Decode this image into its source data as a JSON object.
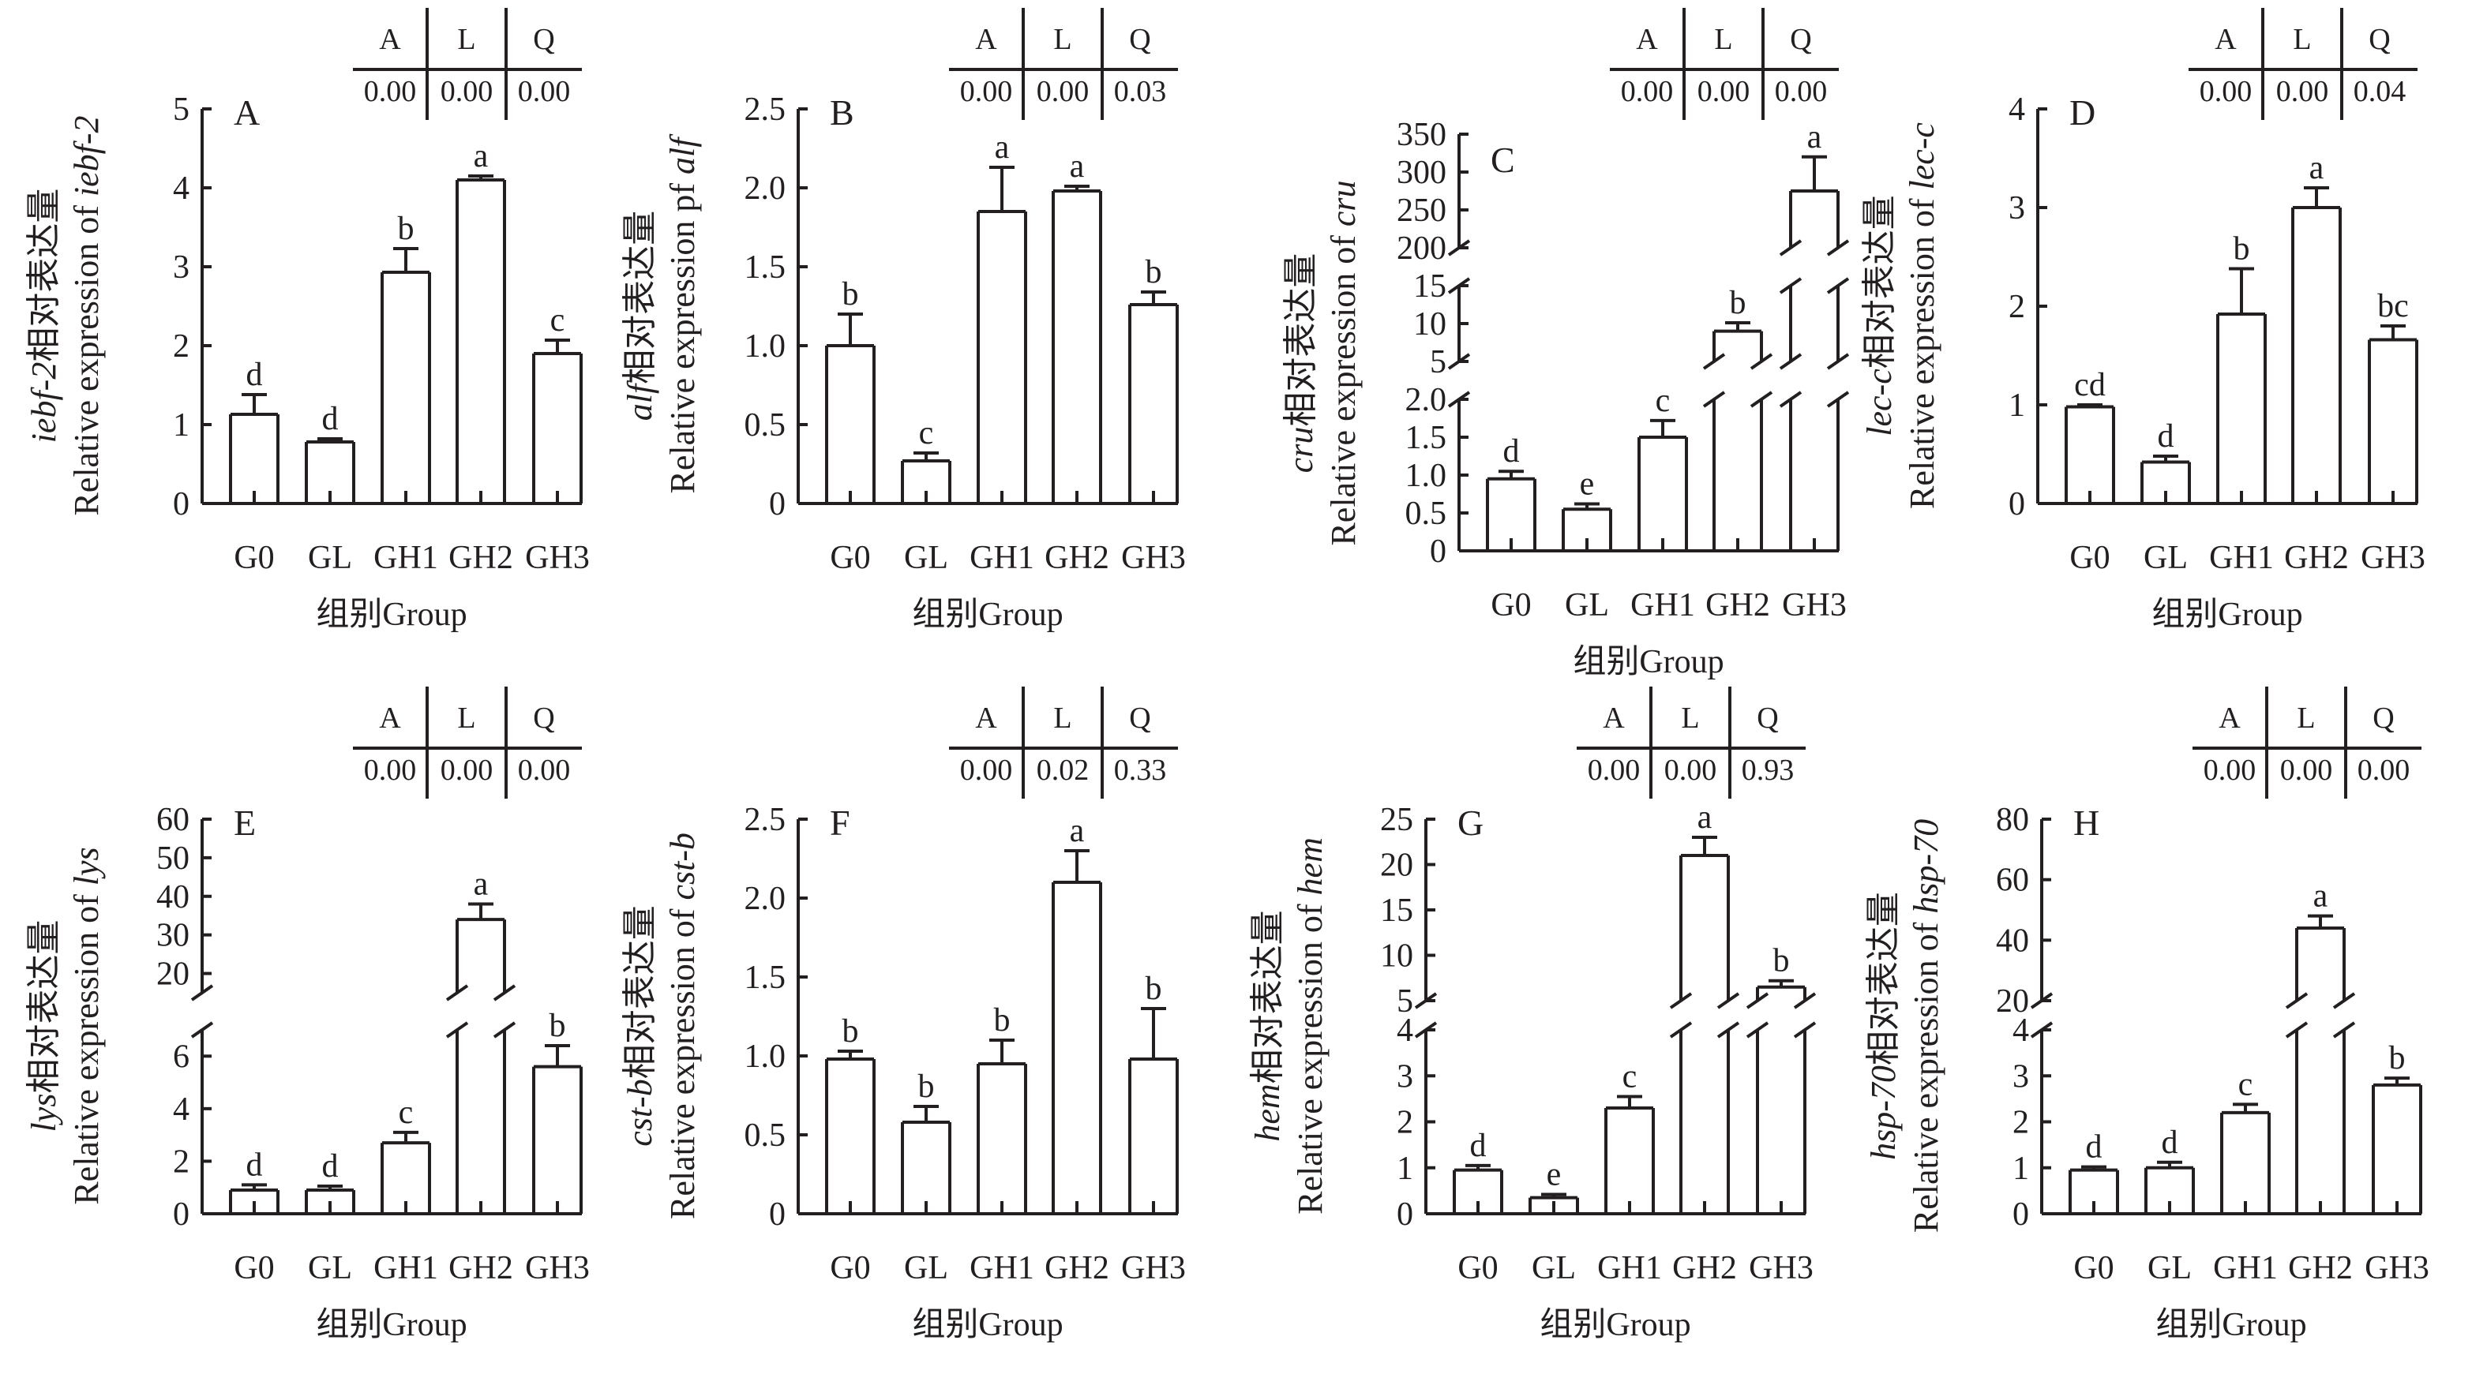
{
  "shared": {
    "xlabel": "组别Group",
    "ylabel_cn_suffix": "相对表达量",
    "table_headers": [
      "A",
      "L",
      "Q"
    ]
  },
  "colors": {
    "ink": "#231f20",
    "bar_fill": "#ffffff"
  },
  "chart_data": [
    {
      "type": "bar",
      "panel_label": "A",
      "ylabel_gene": "iebf-2",
      "ylabel_en_prefix": "Relative expression of ",
      "xlabel": "组别Group",
      "categories": [
        "G0",
        "GL",
        "GH1",
        "GH2",
        "GH3"
      ],
      "values": [
        1.13,
        0.78,
        2.93,
        4.1,
        1.9
      ],
      "error_upper": [
        1.38,
        0.82,
        3.23,
        4.15,
        2.07
      ],
      "letters": [
        "d",
        "d",
        "b",
        "a",
        "c"
      ],
      "table_values": [
        "0.00",
        "0.00",
        "0.00"
      ],
      "segments": [
        {
          "range": [
            0,
            5
          ],
          "ticks": [
            "0",
            "1",
            "2",
            "3",
            "4",
            "5"
          ]
        }
      ]
    },
    {
      "type": "bar",
      "panel_label": "B",
      "ylabel_gene": "alf",
      "ylabel_en_prefix": "Relative expression pf ",
      "xlabel": "组别Group",
      "categories": [
        "G0",
        "GL",
        "GH1",
        "GH2",
        "GH3"
      ],
      "values": [
        1.0,
        0.27,
        1.85,
        1.98,
        1.26
      ],
      "error_upper": [
        1.2,
        0.32,
        2.13,
        2.01,
        1.34
      ],
      "letters": [
        "b",
        "c",
        "a",
        "a",
        "b"
      ],
      "table_values": [
        "0.00",
        "0.00",
        "0.03"
      ],
      "segments": [
        {
          "range": [
            0,
            2.5
          ],
          "ticks": [
            "0",
            "0.5",
            "1.0",
            "1.5",
            "2.0",
            "2.5"
          ]
        }
      ]
    },
    {
      "type": "bar",
      "panel_label": "C",
      "ylabel_gene": "cru",
      "ylabel_en_prefix": "Relative expression of ",
      "xlabel": "组别Group",
      "categories": [
        "G0",
        "GL",
        "GH1",
        "GH2",
        "GH3"
      ],
      "values": [
        0.95,
        0.55,
        1.5,
        9,
        275
      ],
      "error_upper": [
        1.05,
        0.62,
        1.72,
        10.1,
        320
      ],
      "letters": [
        "d",
        "e",
        "c",
        "b",
        "a"
      ],
      "table_values": [
        "0.00",
        "0.00",
        "0.00"
      ],
      "segments": [
        {
          "range": [
            0,
            2
          ],
          "ticks": [
            "0",
            "0.5",
            "1.0",
            "1.5",
            "2.0"
          ]
        },
        {
          "range": [
            5,
            15
          ],
          "ticks": [
            "5",
            "10",
            "15"
          ]
        },
        {
          "range": [
            200,
            350
          ],
          "ticks": [
            "200",
            "250",
            "300",
            "350"
          ]
        }
      ]
    },
    {
      "type": "bar",
      "panel_label": "D",
      "ylabel_gene": "lec-c",
      "ylabel_en_prefix": "Relative expression of ",
      "xlabel": "组别Group",
      "categories": [
        "G0",
        "GL",
        "GH1",
        "GH2",
        "GH3"
      ],
      "values": [
        0.98,
        0.42,
        1.92,
        3.0,
        1.66
      ],
      "error_upper": [
        1.0,
        0.48,
        2.38,
        3.2,
        1.8
      ],
      "letters": [
        "cd",
        "d",
        "b",
        "a",
        "bc"
      ],
      "table_values": [
        "0.00",
        "0.00",
        "0.04"
      ],
      "segments": [
        {
          "range": [
            0,
            4
          ],
          "ticks": [
            "0",
            "1",
            "2",
            "3",
            "4"
          ]
        }
      ]
    },
    {
      "type": "bar",
      "panel_label": "E",
      "ylabel_gene": "lys",
      "ylabel_en_prefix": "Relative expression of ",
      "xlabel": "组别Group",
      "categories": [
        "G0",
        "GL",
        "GH1",
        "GH2",
        "GH3"
      ],
      "values": [
        0.9,
        0.9,
        2.7,
        34,
        5.6
      ],
      "error_upper": [
        1.1,
        1.05,
        3.1,
        38,
        6.4
      ],
      "letters": [
        "d",
        "d",
        "c",
        "a",
        "b"
      ],
      "table_values": [
        "0.00",
        "0.00",
        "0.00"
      ],
      "segments": [
        {
          "range": [
            0,
            7
          ],
          "ticks": [
            "0",
            "2",
            "4",
            "6"
          ]
        },
        {
          "range": [
            15,
            60
          ],
          "ticks": [
            "20",
            "30",
            "40",
            "50",
            "60"
          ]
        }
      ]
    },
    {
      "type": "bar",
      "panel_label": "F",
      "ylabel_gene": "cst-b",
      "ylabel_en_prefix": "Relative expression of ",
      "xlabel": "组别Group",
      "categories": [
        "G0",
        "GL",
        "GH1",
        "GH2",
        "GH3"
      ],
      "values": [
        0.98,
        0.58,
        0.95,
        2.1,
        0.98
      ],
      "error_upper": [
        1.03,
        0.68,
        1.1,
        2.3,
        1.3
      ],
      "letters": [
        "b",
        "b",
        "b",
        "a",
        "b"
      ],
      "table_values": [
        "0.00",
        "0.02",
        "0.33"
      ],
      "segments": [
        {
          "range": [
            0,
            2.5
          ],
          "ticks": [
            "0",
            "0.5",
            "1.0",
            "1.5",
            "2.0",
            "2.5"
          ]
        }
      ]
    },
    {
      "type": "bar",
      "panel_label": "G",
      "ylabel_gene": "hem",
      "ylabel_en_prefix": "Relative expression of ",
      "xlabel": "组别Group",
      "categories": [
        "G0",
        "GL",
        "GH1",
        "GH2",
        "GH3"
      ],
      "values": [
        0.95,
        0.35,
        2.3,
        21,
        6.5
      ],
      "error_upper": [
        1.05,
        0.42,
        2.55,
        23,
        7.2
      ],
      "letters": [
        "d",
        "e",
        "c",
        "a",
        "b"
      ],
      "table_values": [
        "0.00",
        "0.00",
        "0.93"
      ],
      "segments": [
        {
          "range": [
            0,
            4
          ],
          "ticks": [
            "0",
            "1",
            "2",
            "3",
            "4"
          ]
        },
        {
          "range": [
            5,
            25
          ],
          "ticks": [
            "5",
            "10",
            "15",
            "20",
            "25"
          ]
        }
      ]
    },
    {
      "type": "bar",
      "panel_label": "H",
      "ylabel_gene": "hsp-70",
      "ylabel_en_prefix": "Relative expression of ",
      "xlabel": "组别Group",
      "categories": [
        "G0",
        "GL",
        "GH1",
        "GH2",
        "GH3"
      ],
      "values": [
        0.95,
        1.0,
        2.2,
        44,
        2.8
      ],
      "error_upper": [
        1.02,
        1.12,
        2.38,
        48,
        2.95
      ],
      "letters": [
        "d",
        "d",
        "c",
        "a",
        "b"
      ],
      "table_values": [
        "0.00",
        "0.00",
        "0.00"
      ],
      "segments": [
        {
          "range": [
            0,
            4
          ],
          "ticks": [
            "0",
            "1",
            "2",
            "3",
            "4"
          ]
        },
        {
          "range": [
            20,
            80
          ],
          "ticks": [
            "20",
            "40",
            "60",
            "80"
          ]
        }
      ]
    }
  ]
}
